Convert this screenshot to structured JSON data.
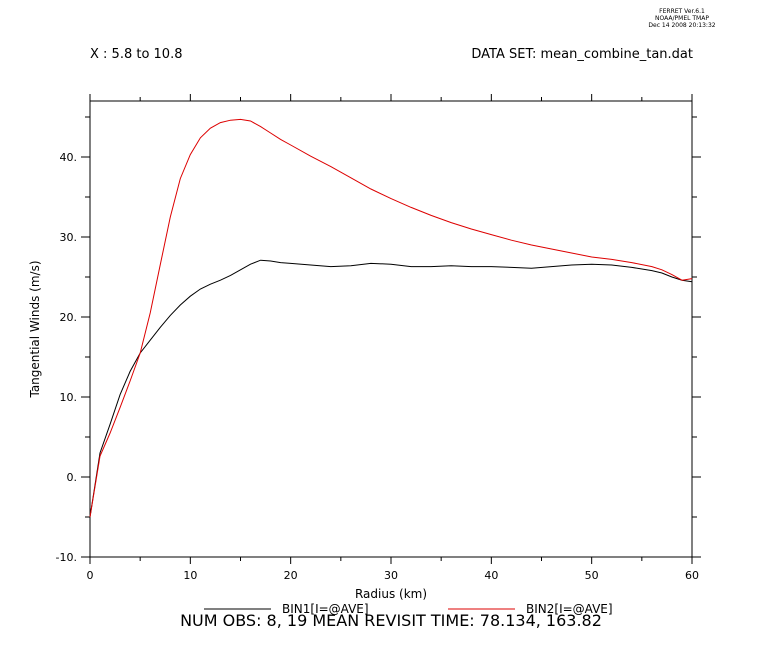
{
  "header": {
    "stamp_lines": [
      "FERRET Ver.6.1",
      "NOAA/PMEL TMAP",
      "Dec 14 2008 20:13:32"
    ],
    "subset": "X : 5.8 to 10.8",
    "dataset": "DATA SET: mean_combine_tan.dat"
  },
  "footer": "NUM OBS: 8, 19 MEAN REVISIT TIME: 78.134, 163.82",
  "chart_data": {
    "type": "line",
    "title": "",
    "xlabel": "Radius (km)",
    "ylabel": "Tangential Winds (m/s)",
    "xlim": [
      0,
      60
    ],
    "ylim": [
      -10,
      47
    ],
    "x_ticks": [
      0,
      10,
      20,
      30,
      40,
      50,
      60
    ],
    "x_tick_labels": [
      "0",
      "10",
      "20",
      "30",
      "40",
      "50",
      "60"
    ],
    "y_ticks": [
      -10,
      0,
      10,
      20,
      30,
      40
    ],
    "y_tick_labels": [
      "-10.",
      "0.",
      "10.",
      "20.",
      "30.",
      "40."
    ],
    "grid": false,
    "legend_position": "bottom",
    "series": [
      {
        "name": "BIN1[I=@AVE]",
        "color": "#000000",
        "x": [
          0,
          1,
          2,
          3,
          4,
          5,
          6,
          7,
          8,
          9,
          10,
          11,
          12,
          13,
          14,
          15,
          16,
          17,
          18,
          19,
          20,
          22,
          24,
          26,
          28,
          30,
          32,
          34,
          36,
          38,
          40,
          42,
          44,
          46,
          48,
          50,
          52,
          54,
          56,
          57,
          58,
          59,
          60
        ],
        "y": [
          -5.0,
          3.0,
          6.6,
          10.3,
          13.2,
          15.5,
          17.1,
          18.7,
          20.2,
          21.5,
          22.6,
          23.5,
          24.1,
          24.6,
          25.2,
          25.9,
          26.6,
          27.1,
          27.0,
          26.8,
          26.7,
          26.5,
          26.3,
          26.4,
          26.7,
          26.6,
          26.3,
          26.3,
          26.4,
          26.3,
          26.3,
          26.2,
          26.1,
          26.3,
          26.5,
          26.6,
          26.5,
          26.2,
          25.8,
          25.5,
          25.0,
          24.6,
          24.4
        ]
      },
      {
        "name": "BIN2[I=@AVE]",
        "color": "#dd0000",
        "x": [
          0,
          1,
          2,
          3,
          4,
          5,
          6,
          7,
          8,
          9,
          10,
          11,
          12,
          13,
          14,
          15,
          16,
          17,
          18,
          19,
          20,
          22,
          24,
          26,
          28,
          30,
          32,
          34,
          36,
          38,
          40,
          42,
          44,
          46,
          48,
          50,
          52,
          54,
          56,
          57,
          58,
          59,
          60
        ],
        "y": [
          -5.0,
          2.6,
          5.5,
          8.7,
          12.0,
          15.5,
          20.5,
          26.5,
          32.5,
          37.3,
          40.3,
          42.4,
          43.6,
          44.3,
          44.6,
          44.7,
          44.5,
          43.8,
          43.0,
          42.2,
          41.5,
          40.1,
          38.8,
          37.4,
          36.0,
          34.8,
          33.7,
          32.7,
          31.8,
          31.0,
          30.3,
          29.6,
          29.0,
          28.5,
          28.0,
          27.5,
          27.2,
          26.8,
          26.3,
          25.9,
          25.3,
          24.6,
          24.8
        ]
      }
    ],
    "annotations": []
  },
  "colors": {
    "axes": "#000000",
    "background": "#ffffff"
  }
}
